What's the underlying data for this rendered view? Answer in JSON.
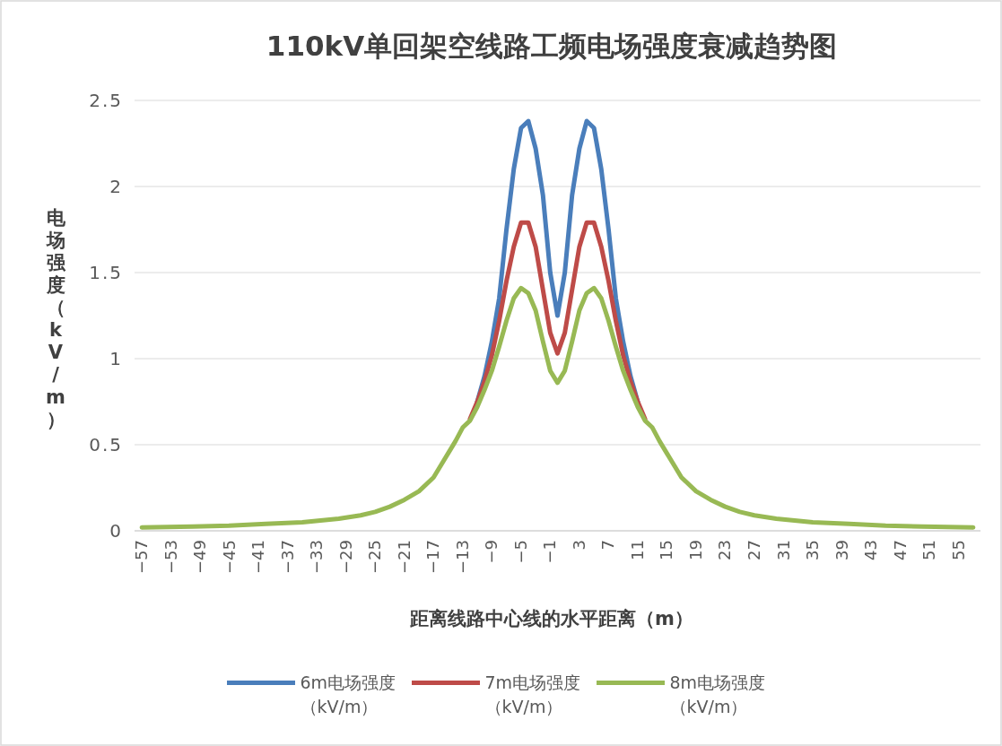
{
  "chart_data": {
    "type": "line",
    "title": "110kV单回架空线路工频电场强度衰减趋势图",
    "xlabel": "距离线路中心线的水平距离（m）",
    "ylabel": "电场强度（kV/m）",
    "x": [
      -57,
      -50,
      -45,
      -40,
      -35,
      -30,
      -27,
      -25,
      -23,
      -21,
      -19,
      -17,
      -15,
      -14,
      -13,
      -12,
      -11,
      -10,
      -9,
      -8,
      -7,
      -6,
      -5,
      -4,
      -3,
      -2,
      -1,
      0,
      1,
      2,
      3,
      4,
      5,
      6,
      7,
      8,
      9,
      10,
      11,
      12,
      13,
      14,
      15,
      17,
      19,
      21,
      23,
      25,
      27,
      30,
      35,
      40,
      45,
      50,
      57
    ],
    "xlim": [
      -58,
      58
    ],
    "xticks": [
      -57,
      -53,
      -49,
      -45,
      -41,
      -37,
      -33,
      -29,
      -25,
      -21,
      -17,
      -13,
      -9,
      -5,
      -1,
      3,
      7,
      11,
      15,
      19,
      23,
      27,
      31,
      35,
      39,
      43,
      47,
      51,
      55
    ],
    "ylim": [
      0,
      2.5
    ],
    "yticks": [
      0,
      0.5,
      1,
      1.5,
      2,
      2.5
    ],
    "grid": "y",
    "legend": "bottom",
    "series": [
      {
        "name": "6m电场强度（kV/m）",
        "color": "#4a7ebb",
        "values": [
          null,
          null,
          null,
          null,
          null,
          null,
          null,
          null,
          null,
          null,
          null,
          null,
          null,
          null,
          null,
          null,
          0.75,
          0.9,
          1.1,
          1.35,
          1.75,
          2.1,
          2.34,
          2.38,
          2.22,
          1.95,
          1.5,
          1.25,
          1.5,
          1.95,
          2.22,
          2.38,
          2.34,
          2.1,
          1.75,
          1.35,
          1.1,
          0.9,
          0.75,
          null,
          null,
          null,
          null,
          null,
          null,
          null,
          null,
          null,
          null,
          null,
          null,
          null,
          null,
          null,
          null
        ]
      },
      {
        "name": "7m电场强度（kV/m）",
        "color": "#be4b48",
        "values": [
          null,
          null,
          null,
          null,
          null,
          null,
          null,
          null,
          null,
          null,
          null,
          null,
          null,
          null,
          null,
          0.65,
          0.75,
          0.87,
          1.02,
          1.22,
          1.45,
          1.65,
          1.79,
          1.79,
          1.65,
          1.4,
          1.15,
          1.03,
          1.15,
          1.4,
          1.65,
          1.79,
          1.79,
          1.65,
          1.45,
          1.22,
          1.02,
          0.87,
          0.75,
          0.65,
          null,
          null,
          null,
          null,
          null,
          null,
          null,
          null,
          null,
          null,
          null,
          null,
          null,
          null,
          null
        ]
      },
      {
        "name": "8m电场强度（kV/m）",
        "color": "#98b954",
        "values": [
          0.02,
          0.025,
          0.03,
          0.04,
          0.05,
          0.07,
          0.09,
          0.11,
          0.14,
          0.18,
          0.23,
          0.31,
          0.45,
          0.52,
          0.6,
          0.64,
          0.72,
          0.82,
          0.93,
          1.07,
          1.22,
          1.35,
          1.41,
          1.38,
          1.28,
          1.1,
          0.93,
          0.86,
          0.93,
          1.1,
          1.28,
          1.38,
          1.41,
          1.35,
          1.22,
          1.07,
          0.93,
          0.82,
          0.72,
          0.64,
          0.6,
          0.52,
          0.45,
          0.31,
          0.23,
          0.18,
          0.14,
          0.11,
          0.09,
          0.07,
          0.05,
          0.04,
          0.03,
          0.025,
          0.02
        ]
      }
    ]
  }
}
